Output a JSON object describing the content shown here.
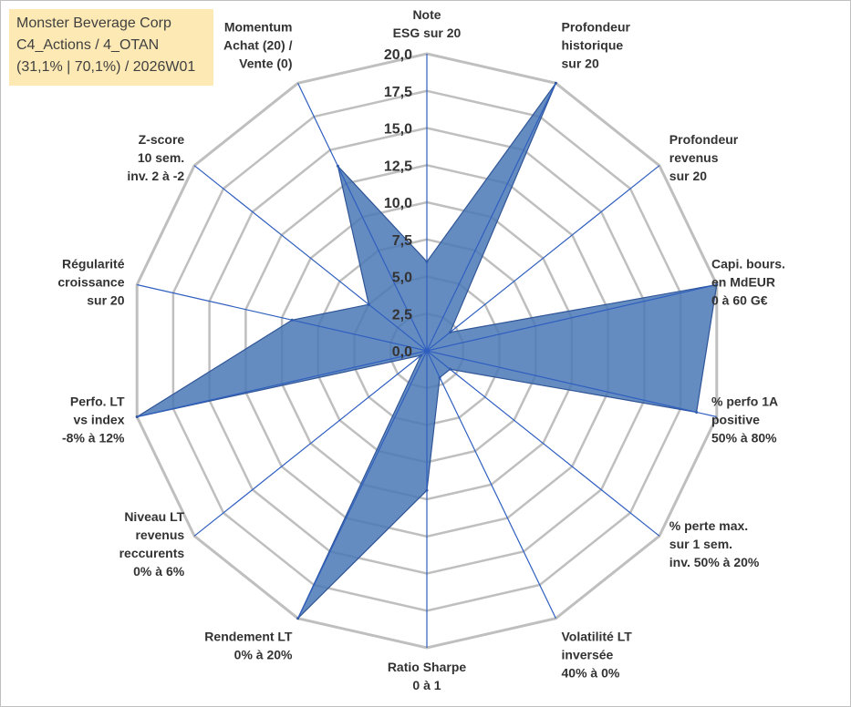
{
  "info": {
    "company": "Monster Beverage Corp",
    "line2": "C4_Actions / 4_OTAN",
    "line3": "(31,1% | 70,1%) / 2026W01"
  },
  "colors": {
    "fill": "#4a78b5",
    "stroke": "#2f5597",
    "grid": "#bfbfbf",
    "infobox": "#fde9b4"
  },
  "chart_data": {
    "type": "radar",
    "title": "",
    "rmin": 0,
    "rmax": 20,
    "tick_step": 2.5,
    "ticks": [
      "0,0",
      "2,5",
      "5,0",
      "7,5",
      "10,0",
      "12,5",
      "15,0",
      "17,5",
      "20,0"
    ],
    "axes": [
      {
        "label": [
          "Note",
          "ESG sur 20"
        ],
        "value": 6
      },
      {
        "label": [
          "Profondeur",
          "historique",
          "sur 20"
        ],
        "value": 20
      },
      {
        "label": [
          "Profondeur",
          "revenus",
          "sur 20"
        ],
        "value": 2
      },
      {
        "label": [
          "Capi. bours.",
          "en MdEUR",
          "0 à 60 G€"
        ],
        "value": 20
      },
      {
        "label": [
          "% perfo 1A",
          "positive",
          "50% à 80%"
        ],
        "value": 18.6
      },
      {
        "label": [
          "% perte max.",
          "sur 1 sem.",
          "inv. 50% à 20%"
        ],
        "value": 2
      },
      {
        "label": [
          "Volatilité LT",
          "inversée",
          "40% à 0%"
        ],
        "value": 2
      },
      {
        "label": [
          "Ratio Sharpe",
          "0 à 1"
        ],
        "value": 9.4
      },
      {
        "label": [
          "Rendement LT",
          "0% à 20%"
        ],
        "value": 20
      },
      {
        "label": [
          "Niveau LT",
          "revenus",
          "reccurents",
          "0% à 6%"
        ],
        "value": 0.5
      },
      {
        "label": [
          "Perfo. LT",
          "vs index",
          "-8% à 12%"
        ],
        "value": 20
      },
      {
        "label": [
          "Régularité",
          "croissance",
          "sur 20"
        ],
        "value": 9.3
      },
      {
        "label": [
          "Z-score",
          "10 sem.",
          "inv. 2 à -2"
        ],
        "value": 5
      },
      {
        "label": [
          "Momentum",
          "Achat (20) /",
          "Vente (0)"
        ],
        "value": 13.8
      }
    ]
  }
}
